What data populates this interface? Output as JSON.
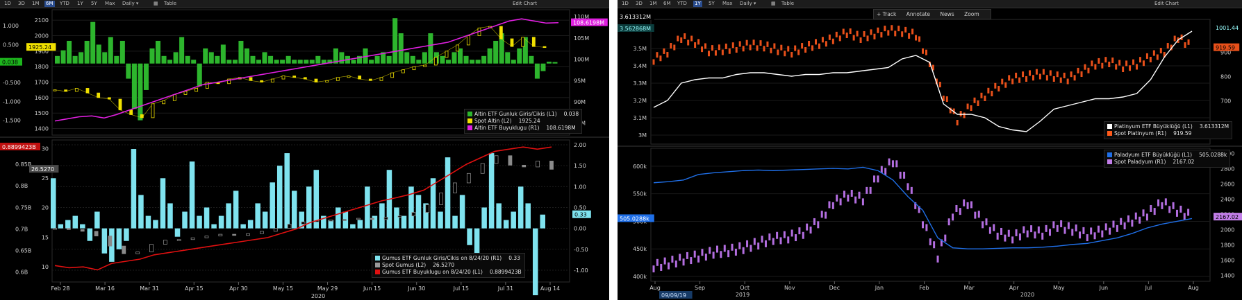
{
  "left": {
    "toolbar": {
      "buttons": [
        "1D",
        "3D",
        "1M",
        "6M",
        "YTD",
        "1Y",
        "5Y",
        "Max",
        "Daily ▾",
        "",
        "Table"
      ],
      "active_index": 3,
      "edit_chart": "Edit Chart"
    },
    "x_ticks": [
      "Feb 28",
      "Mar 16",
      "Mar 31",
      "Apr 15",
      "Apr 30",
      "May 15",
      "May 29",
      "Jun 15",
      "Jun 30",
      "Jul 15",
      "Jul 31",
      "Aug 14"
    ],
    "x_year": "2020",
    "top": {
      "y_left_ticks": [
        "1.000",
        "0.500",
        "-0.500",
        "-1.000",
        "-1.500"
      ],
      "y_left_zero_tag": "0.038",
      "y_mid_ticks": [
        "2100",
        "2000",
        "1900",
        "1800",
        "1700",
        "1600",
        "1500",
        "1400"
      ],
      "y_mid_tag": "1925.24",
      "y_right_ticks": [
        "110M",
        "105M",
        "100M",
        "95M",
        "90M",
        "85M"
      ],
      "y_right_tag": "108.6198M",
      "legend": [
        {
          "label": "Altin ETF Gunluk Giris/Cikis (L1)",
          "value": "0.038",
          "color": "#2db52d"
        },
        {
          "label": "Spot Altin (L2)",
          "value": "1925.24",
          "color": "#f0e000"
        },
        {
          "label": "Altin ETF Buyuklugu (R1)",
          "value": "108.6198M",
          "color": "#e020e0"
        }
      ]
    },
    "bottom": {
      "y_left_ticks": [
        "0.85B",
        "0.8B",
        "0.75B",
        "0.7B",
        "0.65B",
        "0.6B"
      ],
      "y_left_tag": "0.8899423B",
      "y_mid_ticks": [
        "30",
        "25",
        "20",
        "15",
        "10"
      ],
      "y_mid_tag": "26.5270",
      "y_right_ticks": [
        "2.00",
        "1.50",
        "1.00",
        "0.50",
        "0.00",
        "-0.50",
        "-1.00"
      ],
      "y_right_tag": "0.33",
      "legend": [
        {
          "label": "Gumus ETF Gunluk Giris/Cikis on 8/24/20 (R1)",
          "value": "0.33",
          "color": "#7fe3ef"
        },
        {
          "label": "Spot Gumus (L2)",
          "value": "26.5270",
          "color": "#9a9a9a"
        },
        {
          "label": "Gumus ETF Buyuklugu on 8/24/20 (L1)",
          "value": "0.8899423B",
          "color": "#e01010"
        }
      ]
    }
  },
  "right": {
    "toolbar": {
      "buttons": [
        "1D",
        "3D",
        "1M",
        "6M",
        "YTD",
        "1Y",
        "5Y",
        "Max",
        "Daily ▾",
        "",
        "Table"
      ],
      "active_index": 5,
      "edit_chart": "Edit Chart"
    },
    "hints": [
      "+ Track",
      "Annotate",
      "News",
      "Zoom"
    ],
    "x_ticks": [
      "Aug",
      "Sep",
      "Oct",
      "Nov",
      "Dec",
      "Jan",
      "Feb",
      "Mar",
      "Apr",
      "May",
      "Jun",
      "Jul",
      "Aug"
    ],
    "x_years": [
      "2019",
      "2020"
    ],
    "x_start_tag": "09/09/19",
    "top": {
      "y_left_ticks": [
        "3.5M",
        "3.4M",
        "3.3M",
        "3.2M",
        "3.1M",
        "3M"
      ],
      "y_left_tags": [
        "3.613312M",
        "3.562868M"
      ],
      "y_right_ticks": [
        "900",
        "800",
        "700",
        "600"
      ],
      "y_right_tags": [
        "1001.44",
        "919.59"
      ],
      "legend": [
        {
          "label": "Platinyum ETF Büyüklüğü (L1)",
          "value": "3.613312M",
          "color": "#ffffff"
        },
        {
          "label": "Spot Platinyum (R1)",
          "value": "919.59",
          "color": "#ff5a1a"
        }
      ]
    },
    "bottom": {
      "y_left_ticks": [
        "600k",
        "550k",
        "500k",
        "450k",
        "400k"
      ],
      "y_left_tag": "505.0288k",
      "y_right_ticks": [
        "3000",
        "2800",
        "2600",
        "2400",
        "2200",
        "2000",
        "1800",
        "1600",
        "1400"
      ],
      "y_right_tag": "2167.02",
      "legend": [
        {
          "label": "Paladyum ETF Büyüklüğü (L1)",
          "value": "505.0288k",
          "color": "#1f6fe8"
        },
        {
          "label": "Spot Paladyum (R1)",
          "value": "2167.02",
          "color": "#c27ee8"
        }
      ]
    }
  },
  "chart_data": [
    {
      "type": "bar",
      "series": [
        {
          "name": "Altin ETF Gunluk Giris/Cikis (L1)",
          "values": [
            0.2,
            0.35,
            0.6,
            0.2,
            0.3,
            0.6,
            1.1,
            0.5,
            0.3,
            0.7,
            0.2,
            0.6,
            -0.4,
            -1.2,
            -1.5,
            -0.7,
            0.4,
            0.6,
            0.2,
            0.1,
            0.3,
            0.7,
            0.2,
            0.1,
            -0.6,
            0.4,
            0.3,
            0.2,
            0.5,
            0.1,
            0.1,
            0.6,
            0.4,
            0.2,
            0.1,
            0.3,
            0.2,
            0.1,
            0.1,
            0.2,
            0.1,
            0.1,
            0.1,
            0.1,
            0.2,
            0.1,
            0.1,
            0.4,
            0.3,
            0.2,
            0.1,
            0.2,
            0.4,
            0.1,
            0.2,
            0.3,
            0.2,
            1.2,
            0.8,
            0.3,
            0.2,
            0.1,
            0.3,
            0.8,
            0.3,
            0.2,
            0.1,
            0.3,
            0.4,
            0.2,
            0.1,
            0.1,
            0.2,
            0.4,
            0.6,
            0.8,
            0.3,
            0.1,
            0.4,
            0.7,
            0.2,
            -0.4,
            -0.2,
            0.05,
            0.04
          ]
        }
      ]
    },
    {
      "type": "line",
      "series": [
        {
          "name": "Spot Altin (L2)",
          "values": [
            1650,
            1640,
            1660,
            1630,
            1600,
            1590,
            1520,
            1490,
            1470,
            1560,
            1580,
            1620,
            1640,
            1660,
            1700,
            1690,
            1720,
            1730,
            1710,
            1700,
            1720,
            1740,
            1730,
            1720,
            1700,
            1710,
            1730,
            1740,
            1720,
            1710,
            1730,
            1760,
            1780,
            1800,
            1810,
            1860,
            1900,
            1940,
            2000,
            2050,
            2060,
            1980,
            1930,
            1990,
            1930,
            1925
          ]
        },
        {
          "name": "Altin ETF Buyuklugu (R1)",
          "values": [
            85.5,
            86,
            86.5,
            86.7,
            86.2,
            87,
            88,
            89,
            90,
            91,
            92,
            93,
            94,
            94.5,
            95,
            95.5,
            96,
            96.5,
            97,
            97.5,
            98,
            98.5,
            99,
            99.5,
            100,
            100.5,
            101,
            101.5,
            102,
            102.5,
            103,
            103.5,
            104,
            105,
            106,
            107,
            108,
            109,
            109.5,
            109,
            108.5,
            108.6
          ]
        }
      ]
    },
    {
      "type": "bar",
      "series": [
        {
          "name": "Gumus ETF Gunluk Giris/Cikis on 8/24/20 (R1)",
          "values": [
            1.2,
            0.1,
            0.2,
            0.3,
            0.1,
            -0.3,
            0.4,
            -0.6,
            -0.8,
            -0.5,
            -0.3,
            1.9,
            0.8,
            0.3,
            0.2,
            1.2,
            0.6,
            -0.2,
            0.4,
            1.6,
            0.3,
            0.5,
            0.1,
            0.3,
            0.6,
            0.9,
            0.1,
            0.2,
            0.6,
            0.4,
            1.1,
            1.5,
            1.8,
            0.9,
            0.4,
            1.0,
            1.4,
            0.3,
            0.2,
            0.5,
            0.4,
            0.1,
            0.2,
            1.0,
            0.3,
            0.6,
            1.4,
            0.5,
            0.3,
            1.0,
            0.8,
            0.6,
            1.2,
            0.4,
            1.7,
            0.3,
            0.8,
            -0.4,
            -0.6,
            0.5,
            1.8,
            0.6,
            0.2,
            0.4,
            1.0,
            0.6,
            -1.6,
            0.33
          ]
        }
      ]
    },
    {
      "type": "line",
      "series": [
        {
          "name": "Spot Gumus (L2)",
          "values": [
            16.5,
            16.3,
            16.0,
            15.2,
            13.5,
            12.2,
            12.5,
            13.8,
            14.5,
            14.6,
            14.9,
            15.2,
            15.5,
            15.3,
            15.6,
            16.0,
            16.5,
            17.2,
            17.6,
            17.8,
            17.9,
            18.0,
            18.2,
            18.0,
            18.4,
            18.6,
            19.2,
            20.5,
            22.5,
            24.2,
            25.8,
            27.5,
            28.8,
            27.2,
            26.9,
            27.9,
            26.5
          ]
        },
        {
          "name": "Gumus ETF Buyuklugu on 8/24/20 (L1)",
          "values": [
            0.615,
            0.61,
            0.612,
            0.605,
            0.62,
            0.625,
            0.63,
            0.64,
            0.645,
            0.65,
            0.655,
            0.66,
            0.665,
            0.67,
            0.675,
            0.68,
            0.69,
            0.7,
            0.715,
            0.725,
            0.735,
            0.745,
            0.755,
            0.765,
            0.772,
            0.78,
            0.79,
            0.81,
            0.83,
            0.85,
            0.865,
            0.88,
            0.885,
            0.89,
            0.885,
            0.89
          ]
        }
      ]
    },
    {
      "type": "line",
      "series": [
        {
          "name": "Platinyum ETF Büyüklüğü (L1)",
          "values": [
            3.16,
            3.2,
            3.3,
            3.32,
            3.33,
            3.33,
            3.35,
            3.36,
            3.36,
            3.35,
            3.34,
            3.35,
            3.35,
            3.36,
            3.36,
            3.37,
            3.38,
            3.39,
            3.44,
            3.46,
            3.42,
            3.18,
            3.12,
            3.12,
            3.1,
            3.05,
            3.03,
            3.02,
            3.08,
            3.15,
            3.17,
            3.19,
            3.21,
            3.21,
            3.22,
            3.24,
            3.32,
            3.45,
            3.55,
            3.6
          ]
        },
        {
          "name": "Spot Platinyum (R1)",
          "values": [
            870,
            900,
            960,
            940,
            905,
            910,
            920,
            930,
            925,
            910,
            900,
            920,
            935,
            955,
            980,
            960,
            975,
            990,
            985,
            970,
            860,
            720,
            620,
            680,
            720,
            760,
            790,
            800,
            810,
            800,
            790,
            820,
            850,
            860,
            840,
            850,
            880,
            900,
            960,
            920
          ]
        }
      ]
    },
    {
      "type": "line",
      "series": [
        {
          "name": "Paladyum ETF Büyüklüğü (L1)",
          "values": [
            570,
            572,
            575,
            585,
            588,
            590,
            592,
            593,
            592,
            593,
            594,
            595,
            596,
            595,
            598,
            592,
            575,
            545,
            520,
            470,
            452,
            450,
            450,
            451,
            452,
            452,
            453,
            455,
            458,
            460,
            465,
            470,
            478,
            488,
            495,
            500,
            505
          ]
        },
        {
          "name": "Spot Paladyum (R1)",
          "values": [
            1520,
            1560,
            1610,
            1650,
            1700,
            1720,
            1760,
            1820,
            1880,
            1900,
            1960,
            2100,
            2350,
            2450,
            2400,
            2700,
            2900,
            2600,
            2100,
            1650,
            2200,
            2350,
            2100,
            1950,
            1900,
            1980,
            1950,
            2050,
            2000,
            1930,
            1980,
            2050,
            2120,
            2200,
            2350,
            2250,
            2167
          ]
        }
      ]
    }
  ]
}
